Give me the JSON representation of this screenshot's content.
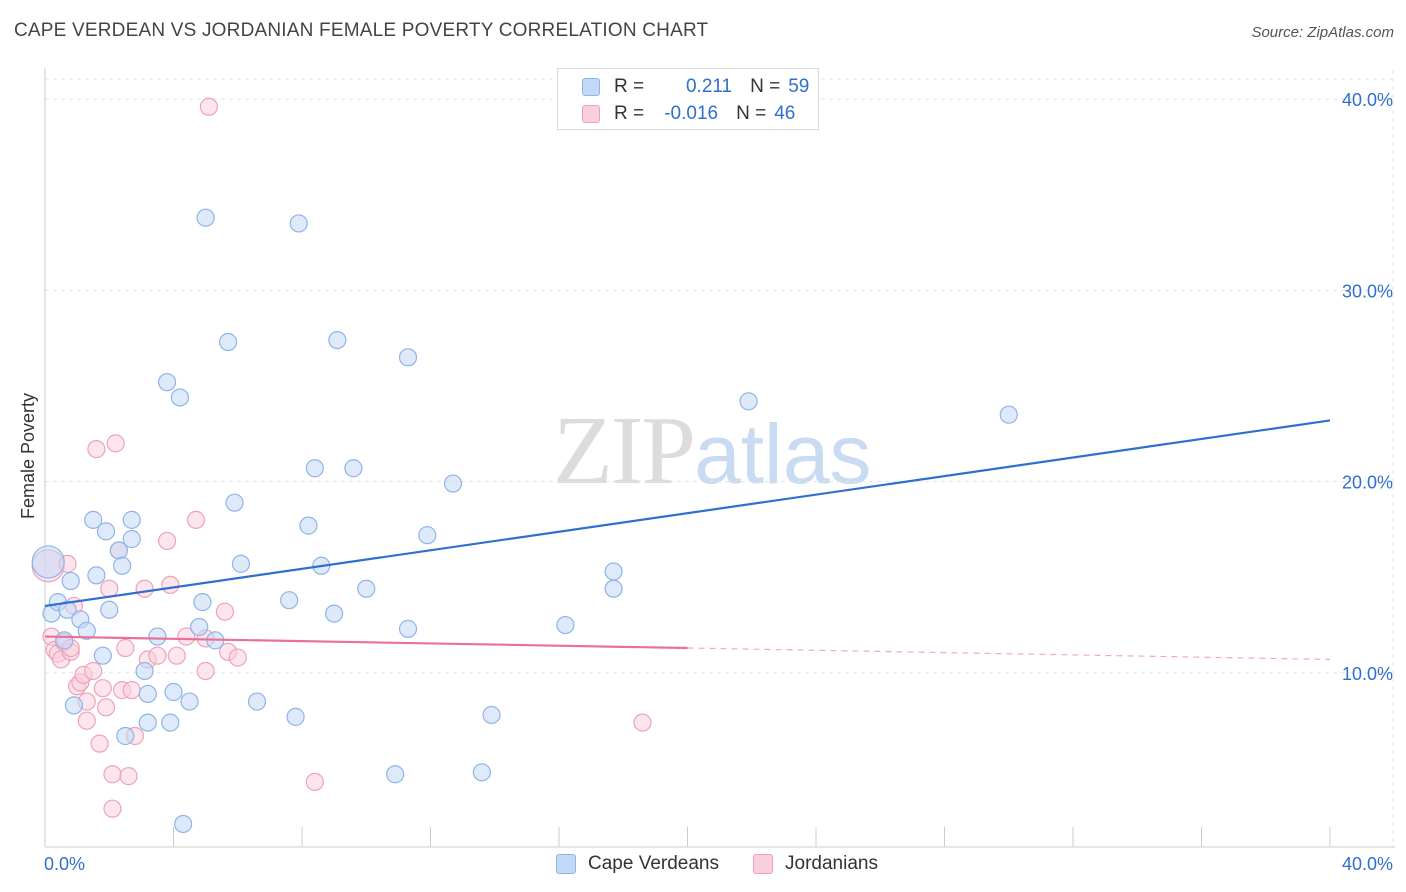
{
  "title": "CAPE VERDEAN VS JORDANIAN FEMALE POVERTY CORRELATION CHART",
  "source": "Source: ZipAtlas.com",
  "watermark": {
    "zip": "ZIP",
    "atlas": "atlas"
  },
  "legend_top": {
    "row1": {
      "r_label": "R =",
      "r_value": "0.211",
      "n_label": "N =",
      "n_value": "59"
    },
    "row2": {
      "r_label": "R =",
      "r_value": "-0.016",
      "n_label": "N =",
      "n_value": "46"
    }
  },
  "legend_bottom": {
    "series1": "Cape Verdeans",
    "series2": "Jordanians"
  },
  "colors": {
    "blue": "#2f6fd0",
    "blue_fill": "#c3d8f5",
    "blue_stroke": "#8fb4e6",
    "pink": "#e8709a",
    "pink_fill": "#f9cfdc",
    "pink_stroke": "#eea2bb",
    "grid": "#e3e3e3",
    "tick_label": "#2f6fd0"
  },
  "chart_data": {
    "type": "scatter",
    "title": "CAPE VERDEAN VS JORDANIAN FEMALE POVERTY CORRELATION CHART",
    "xlabel": "",
    "ylabel": "Female Poverty",
    "xlim": [
      0,
      40
    ],
    "ylim": [
      1,
      41
    ],
    "x_tick_labels": [
      "0.0%",
      "40.0%"
    ],
    "y_ticks": [
      10,
      20,
      30,
      40
    ],
    "y_tick_labels": [
      "10.0%",
      "20.0%",
      "30.0%",
      "40.0%"
    ],
    "series": [
      {
        "name": "Cape Verdeans",
        "r": 0.211,
        "n": 59,
        "trend": {
          "x": [
            0,
            40
          ],
          "y": [
            13.5,
            23.2
          ],
          "style": "solid"
        },
        "points": [
          {
            "x": 0.1,
            "y": 15.8,
            "big": true
          },
          {
            "x": 0.2,
            "y": 13.1
          },
          {
            "x": 0.4,
            "y": 13.7
          },
          {
            "x": 0.6,
            "y": 11.7
          },
          {
            "x": 0.7,
            "y": 13.3
          },
          {
            "x": 0.8,
            "y": 14.8
          },
          {
            "x": 0.9,
            "y": 8.3
          },
          {
            "x": 1.1,
            "y": 12.8
          },
          {
            "x": 1.3,
            "y": 12.2
          },
          {
            "x": 1.5,
            "y": 18.0
          },
          {
            "x": 1.6,
            "y": 15.1
          },
          {
            "x": 1.8,
            "y": 10.9
          },
          {
            "x": 1.9,
            "y": 17.4
          },
          {
            "x": 2.0,
            "y": 13.3
          },
          {
            "x": 2.3,
            "y": 16.4
          },
          {
            "x": 2.4,
            "y": 15.6
          },
          {
            "x": 2.5,
            "y": 6.7
          },
          {
            "x": 2.7,
            "y": 17.0
          },
          {
            "x": 2.7,
            "y": 18.0
          },
          {
            "x": 3.1,
            "y": 10.1
          },
          {
            "x": 3.2,
            "y": 8.9
          },
          {
            "x": 3.2,
            "y": 7.4
          },
          {
            "x": 3.5,
            "y": 11.9
          },
          {
            "x": 3.8,
            "y": 25.2
          },
          {
            "x": 3.9,
            "y": 7.4
          },
          {
            "x": 4.0,
            "y": 9.0
          },
          {
            "x": 4.2,
            "y": 24.4
          },
          {
            "x": 4.3,
            "y": 2.1
          },
          {
            "x": 4.5,
            "y": 8.5
          },
          {
            "x": 4.8,
            "y": 12.4
          },
          {
            "x": 4.9,
            "y": 13.7
          },
          {
            "x": 5.0,
            "y": 33.8
          },
          {
            "x": 5.3,
            "y": 11.7
          },
          {
            "x": 5.7,
            "y": 27.3
          },
          {
            "x": 5.9,
            "y": 18.9
          },
          {
            "x": 6.1,
            "y": 15.7
          },
          {
            "x": 6.6,
            "y": 8.5
          },
          {
            "x": 7.6,
            "y": 13.8
          },
          {
            "x": 7.8,
            "y": 7.7
          },
          {
            "x": 7.9,
            "y": 33.5
          },
          {
            "x": 8.2,
            "y": 17.7
          },
          {
            "x": 8.4,
            "y": 20.7
          },
          {
            "x": 8.6,
            "y": 15.6
          },
          {
            "x": 9.0,
            "y": 13.1
          },
          {
            "x": 9.1,
            "y": 27.4
          },
          {
            "x": 9.6,
            "y": 20.7
          },
          {
            "x": 10.0,
            "y": 14.4
          },
          {
            "x": 10.9,
            "y": 4.7
          },
          {
            "x": 11.3,
            "y": 26.5
          },
          {
            "x": 11.3,
            "y": 12.3
          },
          {
            "x": 11.9,
            "y": 17.2
          },
          {
            "x": 12.7,
            "y": 19.9
          },
          {
            "x": 13.6,
            "y": 4.8
          },
          {
            "x": 13.9,
            "y": 7.8
          },
          {
            "x": 16.2,
            "y": 12.5
          },
          {
            "x": 17.7,
            "y": 14.4
          },
          {
            "x": 17.7,
            "y": 15.3
          },
          {
            "x": 21.9,
            "y": 24.2
          },
          {
            "x": 30.0,
            "y": 23.5
          }
        ]
      },
      {
        "name": "Jordanians",
        "r": -0.016,
        "n": 46,
        "trend": {
          "x": [
            0,
            20
          ],
          "y": [
            11.9,
            11.3
          ],
          "style": "solid",
          "extended": {
            "x": [
              20,
              40
            ],
            "y": [
              11.3,
              10.7
            ],
            "style": "dashed"
          }
        },
        "points": [
          {
            "x": 0.1,
            "y": 15.6,
            "big": true
          },
          {
            "x": 0.2,
            "y": 11.9
          },
          {
            "x": 0.3,
            "y": 11.2
          },
          {
            "x": 0.4,
            "y": 11.0
          },
          {
            "x": 0.5,
            "y": 10.7
          },
          {
            "x": 0.6,
            "y": 11.6
          },
          {
            "x": 0.7,
            "y": 15.7
          },
          {
            "x": 0.8,
            "y": 11.1
          },
          {
            "x": 0.8,
            "y": 11.3
          },
          {
            "x": 0.9,
            "y": 13.5
          },
          {
            "x": 1.0,
            "y": 9.3
          },
          {
            "x": 1.1,
            "y": 9.5
          },
          {
            "x": 1.2,
            "y": 9.9
          },
          {
            "x": 1.3,
            "y": 7.5
          },
          {
            "x": 1.3,
            "y": 8.5
          },
          {
            "x": 1.5,
            "y": 10.1
          },
          {
            "x": 1.6,
            "y": 21.7
          },
          {
            "x": 1.7,
            "y": 6.3
          },
          {
            "x": 1.8,
            "y": 9.2
          },
          {
            "x": 1.9,
            "y": 8.2
          },
          {
            "x": 2.0,
            "y": 14.4
          },
          {
            "x": 2.1,
            "y": 2.9
          },
          {
            "x": 2.1,
            "y": 4.7
          },
          {
            "x": 2.2,
            "y": 22.0
          },
          {
            "x": 2.3,
            "y": 16.4
          },
          {
            "x": 2.4,
            "y": 9.1
          },
          {
            "x": 2.5,
            "y": 11.3
          },
          {
            "x": 2.6,
            "y": 4.6
          },
          {
            "x": 2.7,
            "y": 9.1
          },
          {
            "x": 2.8,
            "y": 6.7
          },
          {
            "x": 3.1,
            "y": 14.4
          },
          {
            "x": 3.2,
            "y": 10.7
          },
          {
            "x": 3.5,
            "y": 10.9
          },
          {
            "x": 3.8,
            "y": 16.9
          },
          {
            "x": 3.9,
            "y": 14.6
          },
          {
            "x": 4.1,
            "y": 10.9
          },
          {
            "x": 4.4,
            "y": 11.9
          },
          {
            "x": 4.7,
            "y": 18.0
          },
          {
            "x": 5.0,
            "y": 11.8
          },
          {
            "x": 5.0,
            "y": 10.1
          },
          {
            "x": 5.6,
            "y": 13.2
          },
          {
            "x": 5.7,
            "y": 11.1
          },
          {
            "x": 6.0,
            "y": 10.8
          },
          {
            "x": 8.4,
            "y": 4.3
          },
          {
            "x": 5.1,
            "y": 39.6
          },
          {
            "x": 18.6,
            "y": 7.4
          }
        ]
      }
    ]
  }
}
